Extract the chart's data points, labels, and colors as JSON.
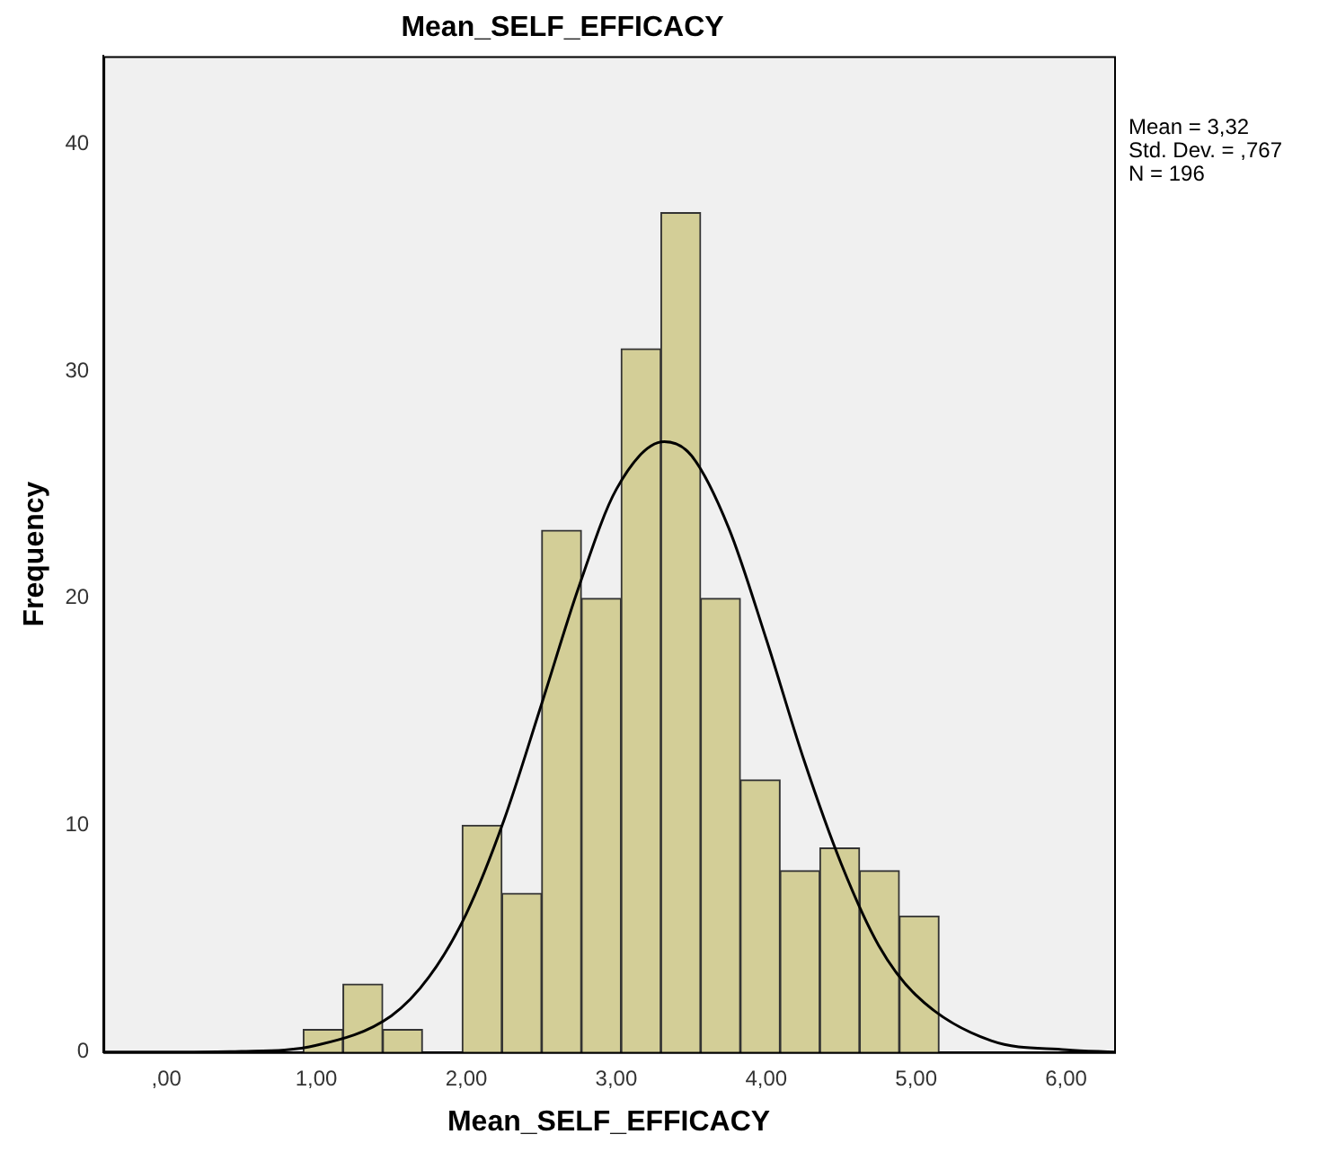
{
  "chart_data": {
    "type": "histogram",
    "title": "Mean_SELF_EFFICACY",
    "xlabel": "Mean_SELF_EFFICACY",
    "ylabel": "Frequency",
    "bins": [
      0.91,
      1.18,
      1.44,
      1.71,
      1.97,
      2.24,
      2.5,
      2.77,
      3.03,
      3.3,
      3.56,
      3.83,
      4.09,
      4.36,
      4.62,
      4.89,
      5.15
    ],
    "values": [
      1,
      3,
      1,
      0,
      10,
      7,
      23,
      20,
      31,
      37,
      20,
      12,
      8,
      9,
      8,
      6
    ],
    "color": "#d3ce97",
    "series": [
      {
        "type": "line",
        "color": "#000000",
        "x": [
          -0.42,
          0,
          0.5,
          1,
          1.5,
          1.75,
          2,
          2.25,
          2.5,
          2.75,
          3,
          3.32,
          3.5,
          3.75,
          4,
          4.25,
          4.5,
          4.75,
          5,
          5.5,
          6,
          6.32
        ],
        "values": [
          0,
          0,
          0.03,
          0.3,
          1.6,
          3.3,
          6.1,
          10.2,
          15.3,
          20.5,
          24.8,
          26.9,
          26.3,
          23.1,
          18.2,
          12.9,
          8.3,
          4.7,
          2.5,
          0.5,
          0.1,
          0
        ]
      }
    ],
    "xlim": [
      -0.42,
      6.32
    ],
    "ylim": [
      0,
      43.9
    ],
    "xticks": [
      {
        "value": 0,
        "label": ",00"
      },
      {
        "value": 1,
        "label": "1,00"
      },
      {
        "value": 2,
        "label": "2,00"
      },
      {
        "value": 3,
        "label": "3,00"
      },
      {
        "value": 4,
        "label": "4,00"
      },
      {
        "value": 5,
        "label": "5,00"
      },
      {
        "value": 6,
        "label": "6,00"
      }
    ],
    "yticks": [
      0,
      10,
      20,
      30,
      40
    ],
    "annotations": [
      "Mean = 3,32",
      "Std. Dev. = ,767",
      "N = 196"
    ]
  }
}
